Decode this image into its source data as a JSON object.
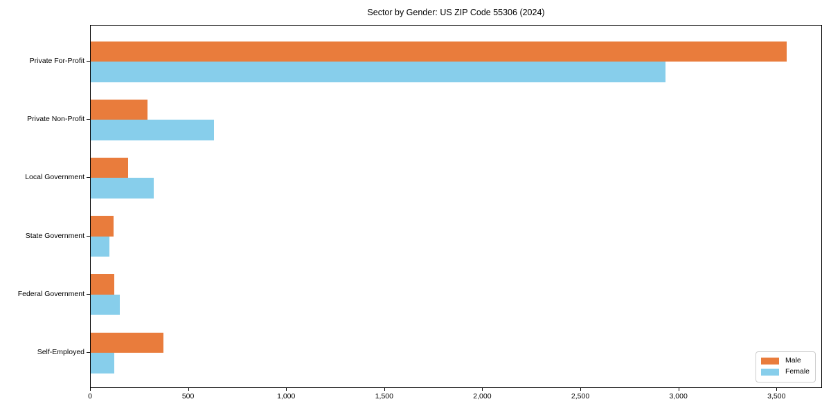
{
  "chart_data": {
    "type": "bar",
    "orientation": "horizontal",
    "title": "Sector by Gender: US ZIP Code 55306 (2024)",
    "categories": [
      "Private For-Profit",
      "Private Non-Profit",
      "Local Government",
      "State Government",
      "Federal Government",
      "Self-Employed"
    ],
    "series": [
      {
        "name": "Male",
        "color": "#e97c3c",
        "values": [
          3550,
          290,
          190,
          115,
          120,
          370
        ]
      },
      {
        "name": "Female",
        "color": "#87ceeb",
        "values": [
          2930,
          630,
          320,
          95,
          150,
          120
        ]
      }
    ],
    "xlabel": "",
    "ylabel": "",
    "xlim": [
      0,
      3732
    ],
    "xticks": [
      0,
      500,
      1000,
      1500,
      2000,
      2500,
      3000,
      3500
    ],
    "xtick_labels": [
      "0",
      "500",
      "1,000",
      "1,500",
      "2,000",
      "2,500",
      "3,000",
      "3,500"
    ],
    "grid": false,
    "legend": {
      "position": "lower-right",
      "entries": [
        "Male",
        "Female"
      ]
    }
  }
}
